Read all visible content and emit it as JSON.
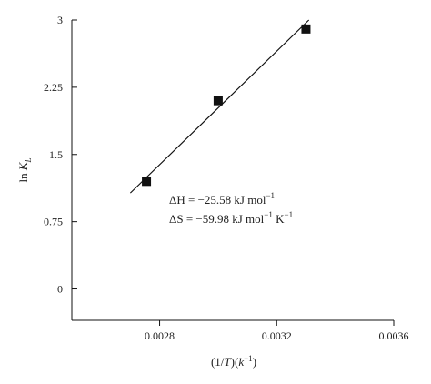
{
  "chart_data": {
    "type": "scatter",
    "xlabel_parts": {
      "open": "(1/",
      "T": "T",
      "mid": ")(",
      "k": "k",
      "exp": "−1",
      "close": ")"
    },
    "ylabel_parts": {
      "ln": "ln ",
      "K": "K",
      "sub": "L"
    },
    "xlim": [
      0.0025,
      0.0036
    ],
    "ylim": [
      -0.35,
      3.0
    ],
    "x_ticks": [
      0.0028,
      0.0032,
      0.0036
    ],
    "x_tick_labels": [
      "0.0028",
      "0.0032",
      "0.0036"
    ],
    "y_ticks": [
      0,
      0.75,
      1.5,
      2.25,
      3
    ],
    "y_tick_labels": [
      "0",
      "0.75",
      "1.5",
      "2.25",
      "3"
    ],
    "grid": false,
    "points": [
      {
        "x": 0.002755,
        "y": 1.2
      },
      {
        "x": 0.003,
        "y": 2.1
      },
      {
        "x": 0.0033,
        "y": 2.9
      }
    ],
    "fit_line": {
      "x": [
        0.0027,
        0.00331
      ],
      "y": [
        1.07,
        3.0
      ]
    },
    "annotations": [
      {
        "pre": "ΔH = −25.58 kJ mol",
        "exp1": "−1",
        "mid": "",
        "exp2": ""
      },
      {
        "pre": "ΔS = −59.98 kJ mol",
        "exp1": "−1",
        "mid": " K",
        "exp2": "−1"
      }
    ]
  }
}
